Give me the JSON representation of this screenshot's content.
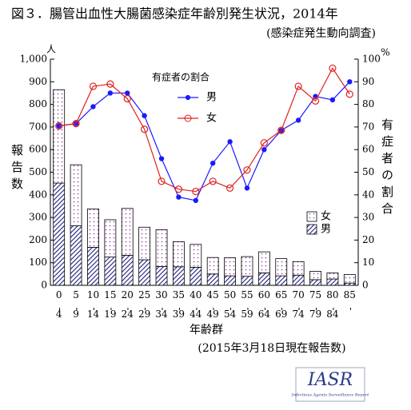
{
  "chart_data": {
    "type": "bar",
    "title": "図３．腸管出血性大腸菌感染症年齢別発生状況，2014年",
    "subtitle": "(感染症発生動向調査)",
    "y_label": "報告数",
    "y_unit": "人",
    "y2_label": "有症者の割合",
    "y2_unit": "%",
    "x_label": "年齢群",
    "note": "(2015年3月18日現在報告数)",
    "line_legend_title": "有症者の割合",
    "categories": [
      "0-4",
      "5-9",
      "10-14",
      "15-19",
      "20-24",
      "25-29",
      "30-34",
      "35-39",
      "40-44",
      "45-49",
      "50-54",
      "55-59",
      "60-64",
      "65-69",
      "70-74",
      "75-79",
      "80-84",
      "85-"
    ],
    "series": [
      {
        "name": "男",
        "type": "bar",
        "color": "#1f1f80",
        "values": [
          452,
          263,
          168,
          125,
          133,
          113,
          83,
          82,
          80,
          50,
          42,
          40,
          55,
          42,
          45,
          25,
          28,
          10
        ]
      },
      {
        "name": "女",
        "type": "bar",
        "color": "#8a3a9a",
        "values": [
          413,
          270,
          170,
          165,
          207,
          144,
          163,
          111,
          101,
          73,
          80,
          87,
          93,
          76,
          60,
          37,
          27,
          38
        ]
      },
      {
        "name": "男",
        "type": "line",
        "axis": "y2",
        "color": "#1a1aff",
        "values": [
          70.5,
          71.5,
          79,
          85,
          85,
          75,
          56,
          39,
          37.5,
          54,
          63.5,
          43,
          60,
          68.5,
          73,
          83.5,
          82,
          90
        ]
      },
      {
        "name": "女",
        "type": "line",
        "axis": "y2",
        "color": "#e02020",
        "values": [
          70.5,
          71.5,
          88,
          89,
          82.5,
          69,
          46,
          42.5,
          41.5,
          46,
          43,
          51,
          63,
          68.5,
          88,
          81.5,
          96,
          84.5
        ]
      }
    ],
    "ylim": [
      0,
      1000
    ],
    "yticks": [
      0,
      100,
      200,
      300,
      400,
      500,
      600,
      700,
      800,
      900,
      {
        "value": 1000,
        "label": "1,000"
      }
    ],
    "y2lim": [
      0,
      100
    ],
    "y2ticks": [
      0,
      10,
      20,
      30,
      40,
      50,
      60,
      70,
      80,
      90,
      100
    ],
    "logo": {
      "text": "IASR",
      "subtitle": "Infectious Agents Surveillance Report"
    }
  }
}
